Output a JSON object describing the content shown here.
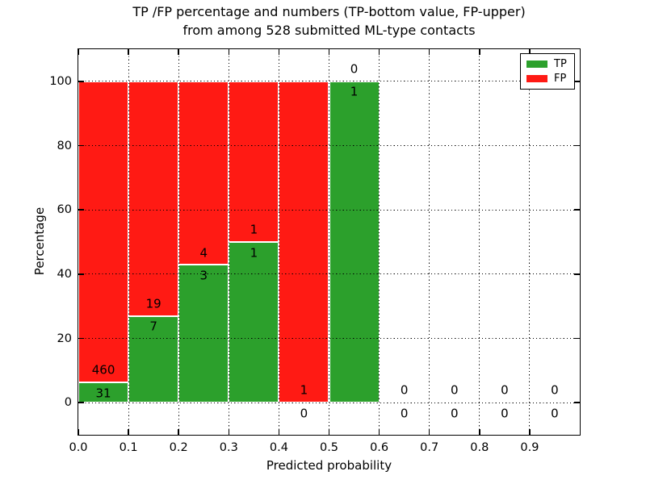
{
  "title": {
    "line1": "TP /FP percentage and numbers (TP-bottom value, FP-upper)",
    "line2": "from among 528 submitted ML-type contacts"
  },
  "axes": {
    "xlabel": "Predicted probability",
    "ylabel": "Percentage",
    "xtick_labels": [
      "0.0",
      "0.1",
      "0.2",
      "0.3",
      "0.4",
      "0.5",
      "0.6",
      "0.7",
      "0.8",
      "0.9"
    ],
    "ytick_labels": [
      "0",
      "20",
      "40",
      "60",
      "80",
      "100"
    ]
  },
  "legend": {
    "items": [
      {
        "label": "TP",
        "color": "#2ca02c"
      },
      {
        "label": "FP",
        "color": "#ff1a14"
      }
    ]
  },
  "chart_data": {
    "type": "bar",
    "stacked": true,
    "title": "TP /FP percentage and numbers (TP-bottom value, FP-upper) from among 528 submitted ML-type contacts",
    "xlabel": "Predicted probability",
    "ylabel": "Percentage",
    "xlim": [
      0.0,
      1.0
    ],
    "ylim": [
      -10,
      110
    ],
    "grid": "dotted-black-over-bars",
    "legend_position": "upper right",
    "bin_width": 0.1,
    "bin_starts": [
      0.0,
      0.1,
      0.2,
      0.3,
      0.4,
      0.5,
      0.6,
      0.7,
      0.8,
      0.9
    ],
    "xticks": [
      0.0,
      0.1,
      0.2,
      0.3,
      0.4,
      0.5,
      0.6,
      0.7,
      0.8,
      0.9
    ],
    "yticks": [
      0,
      20,
      40,
      60,
      80,
      100
    ],
    "series": [
      {
        "name": "TP",
        "color": "#2ca02c",
        "counts": [
          31,
          7,
          3,
          1,
          0,
          1,
          0,
          0,
          0,
          0
        ]
      },
      {
        "name": "FP",
        "color": "#ff1a14",
        "counts": [
          460,
          19,
          4,
          1,
          1,
          0,
          0,
          0,
          0,
          0
        ]
      }
    ],
    "tp_percent_per_bin": [
      6.31,
      26.92,
      42.86,
      50.0,
      0.0,
      100.0,
      null,
      null,
      null,
      null
    ],
    "total_contacts": 528,
    "annotation_offsets_pct": {
      "fp_above_boundary": 3.7,
      "tp_below_boundary": 3.4
    }
  }
}
